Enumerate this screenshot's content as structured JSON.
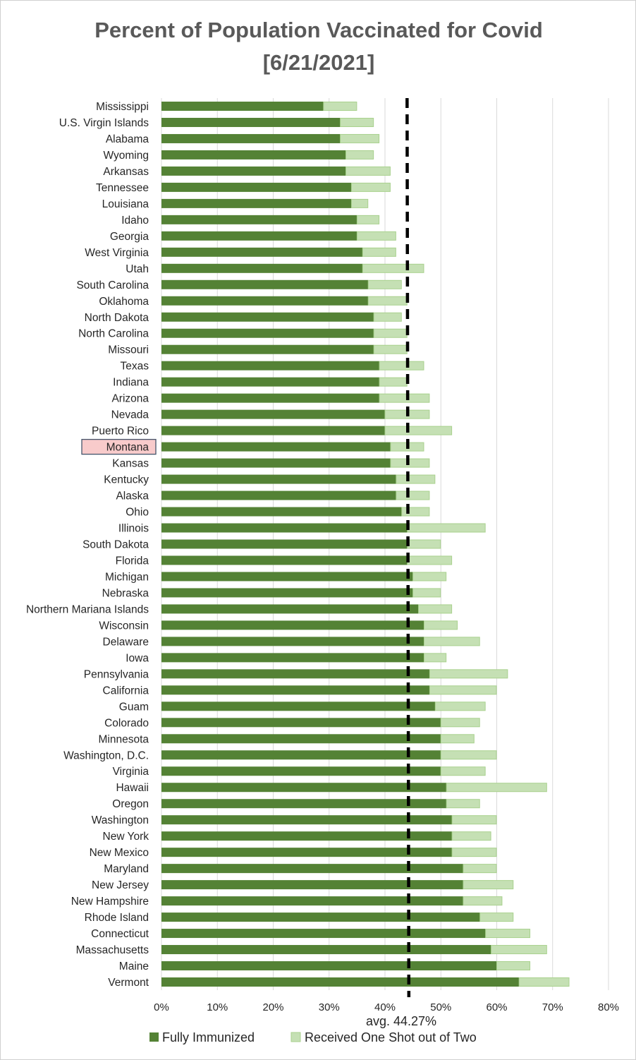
{
  "chart_data": {
    "type": "bar",
    "orientation": "horizontal",
    "stacked": true,
    "title": "Percent of Population Vaccinated for Covid",
    "subtitle": "[6/21/2021]",
    "xlim": [
      0,
      80
    ],
    "x_ticks": [
      "0%",
      "10%",
      "20%",
      "30%",
      "40%",
      "50%",
      "60%",
      "70%",
      "80%"
    ],
    "grid": true,
    "legend_position": "bottom",
    "highlighted_category": "Montana",
    "average": {
      "value": 44.27,
      "label": "avg. 44.27%"
    },
    "colors": {
      "fully": "#548235",
      "one_shot": "#c5e0b4",
      "one_shot_border": "#a9d18e",
      "highlight_fill": "#f8cbcb",
      "highlight_border": "#44546a",
      "grid": "#d9d9d9"
    },
    "categories": [
      "Mississippi",
      "U.S. Virgin Islands",
      "Alabama",
      "Wyoming",
      "Arkansas",
      "Tennessee",
      "Louisiana",
      "Idaho",
      "Georgia",
      "West Virginia",
      "Utah",
      "South Carolina",
      "Oklahoma",
      "North Dakota",
      "North Carolina",
      "Missouri",
      "Texas",
      "Indiana",
      "Arizona",
      "Nevada",
      "Puerto Rico",
      "Montana",
      "Kansas",
      "Kentucky",
      "Alaska",
      "Ohio",
      "Illinois",
      "South Dakota",
      "Florida",
      "Michigan",
      "Nebraska",
      "Northern Mariana Islands",
      "Wisconsin",
      "Delaware",
      "Iowa",
      "Pennsylvania",
      "California",
      "Guam",
      "Colorado",
      "Minnesota",
      "Washington, D.C.",
      "Virginia",
      "Hawaii",
      "Oregon",
      "Washington",
      "New York",
      "New Mexico",
      "Maryland",
      "New Jersey",
      "New Hampshire",
      "Rhode Island",
      "Connecticut",
      "Massachusetts",
      "Maine",
      "Vermont"
    ],
    "series": [
      {
        "name": "Fully Immunized",
        "values": [
          29,
          32,
          32,
          33,
          33,
          34,
          34,
          35,
          35,
          36,
          36,
          37,
          37,
          38,
          38,
          38,
          39,
          39,
          39,
          40,
          40,
          41,
          41,
          42,
          42,
          43,
          44,
          44,
          44,
          45,
          45,
          46,
          47,
          47,
          47,
          48,
          48,
          49,
          50,
          50,
          50,
          50,
          51,
          51,
          52,
          52,
          52,
          54,
          54,
          54,
          57,
          58,
          59,
          60,
          64
        ]
      },
      {
        "name": "Received One Shot out of Two",
        "values": [
          6,
          6,
          7,
          5,
          8,
          7,
          3,
          4,
          7,
          6,
          11,
          6,
          7,
          5,
          6,
          6,
          8,
          5,
          9,
          8,
          12,
          6,
          7,
          7,
          6,
          5,
          14,
          6,
          8,
          6,
          5,
          6,
          6,
          10,
          4,
          14,
          12,
          9,
          7,
          6,
          10,
          8,
          18,
          6,
          8,
          7,
          8,
          6,
          9,
          7,
          6,
          8,
          10,
          6,
          9
        ]
      }
    ]
  }
}
